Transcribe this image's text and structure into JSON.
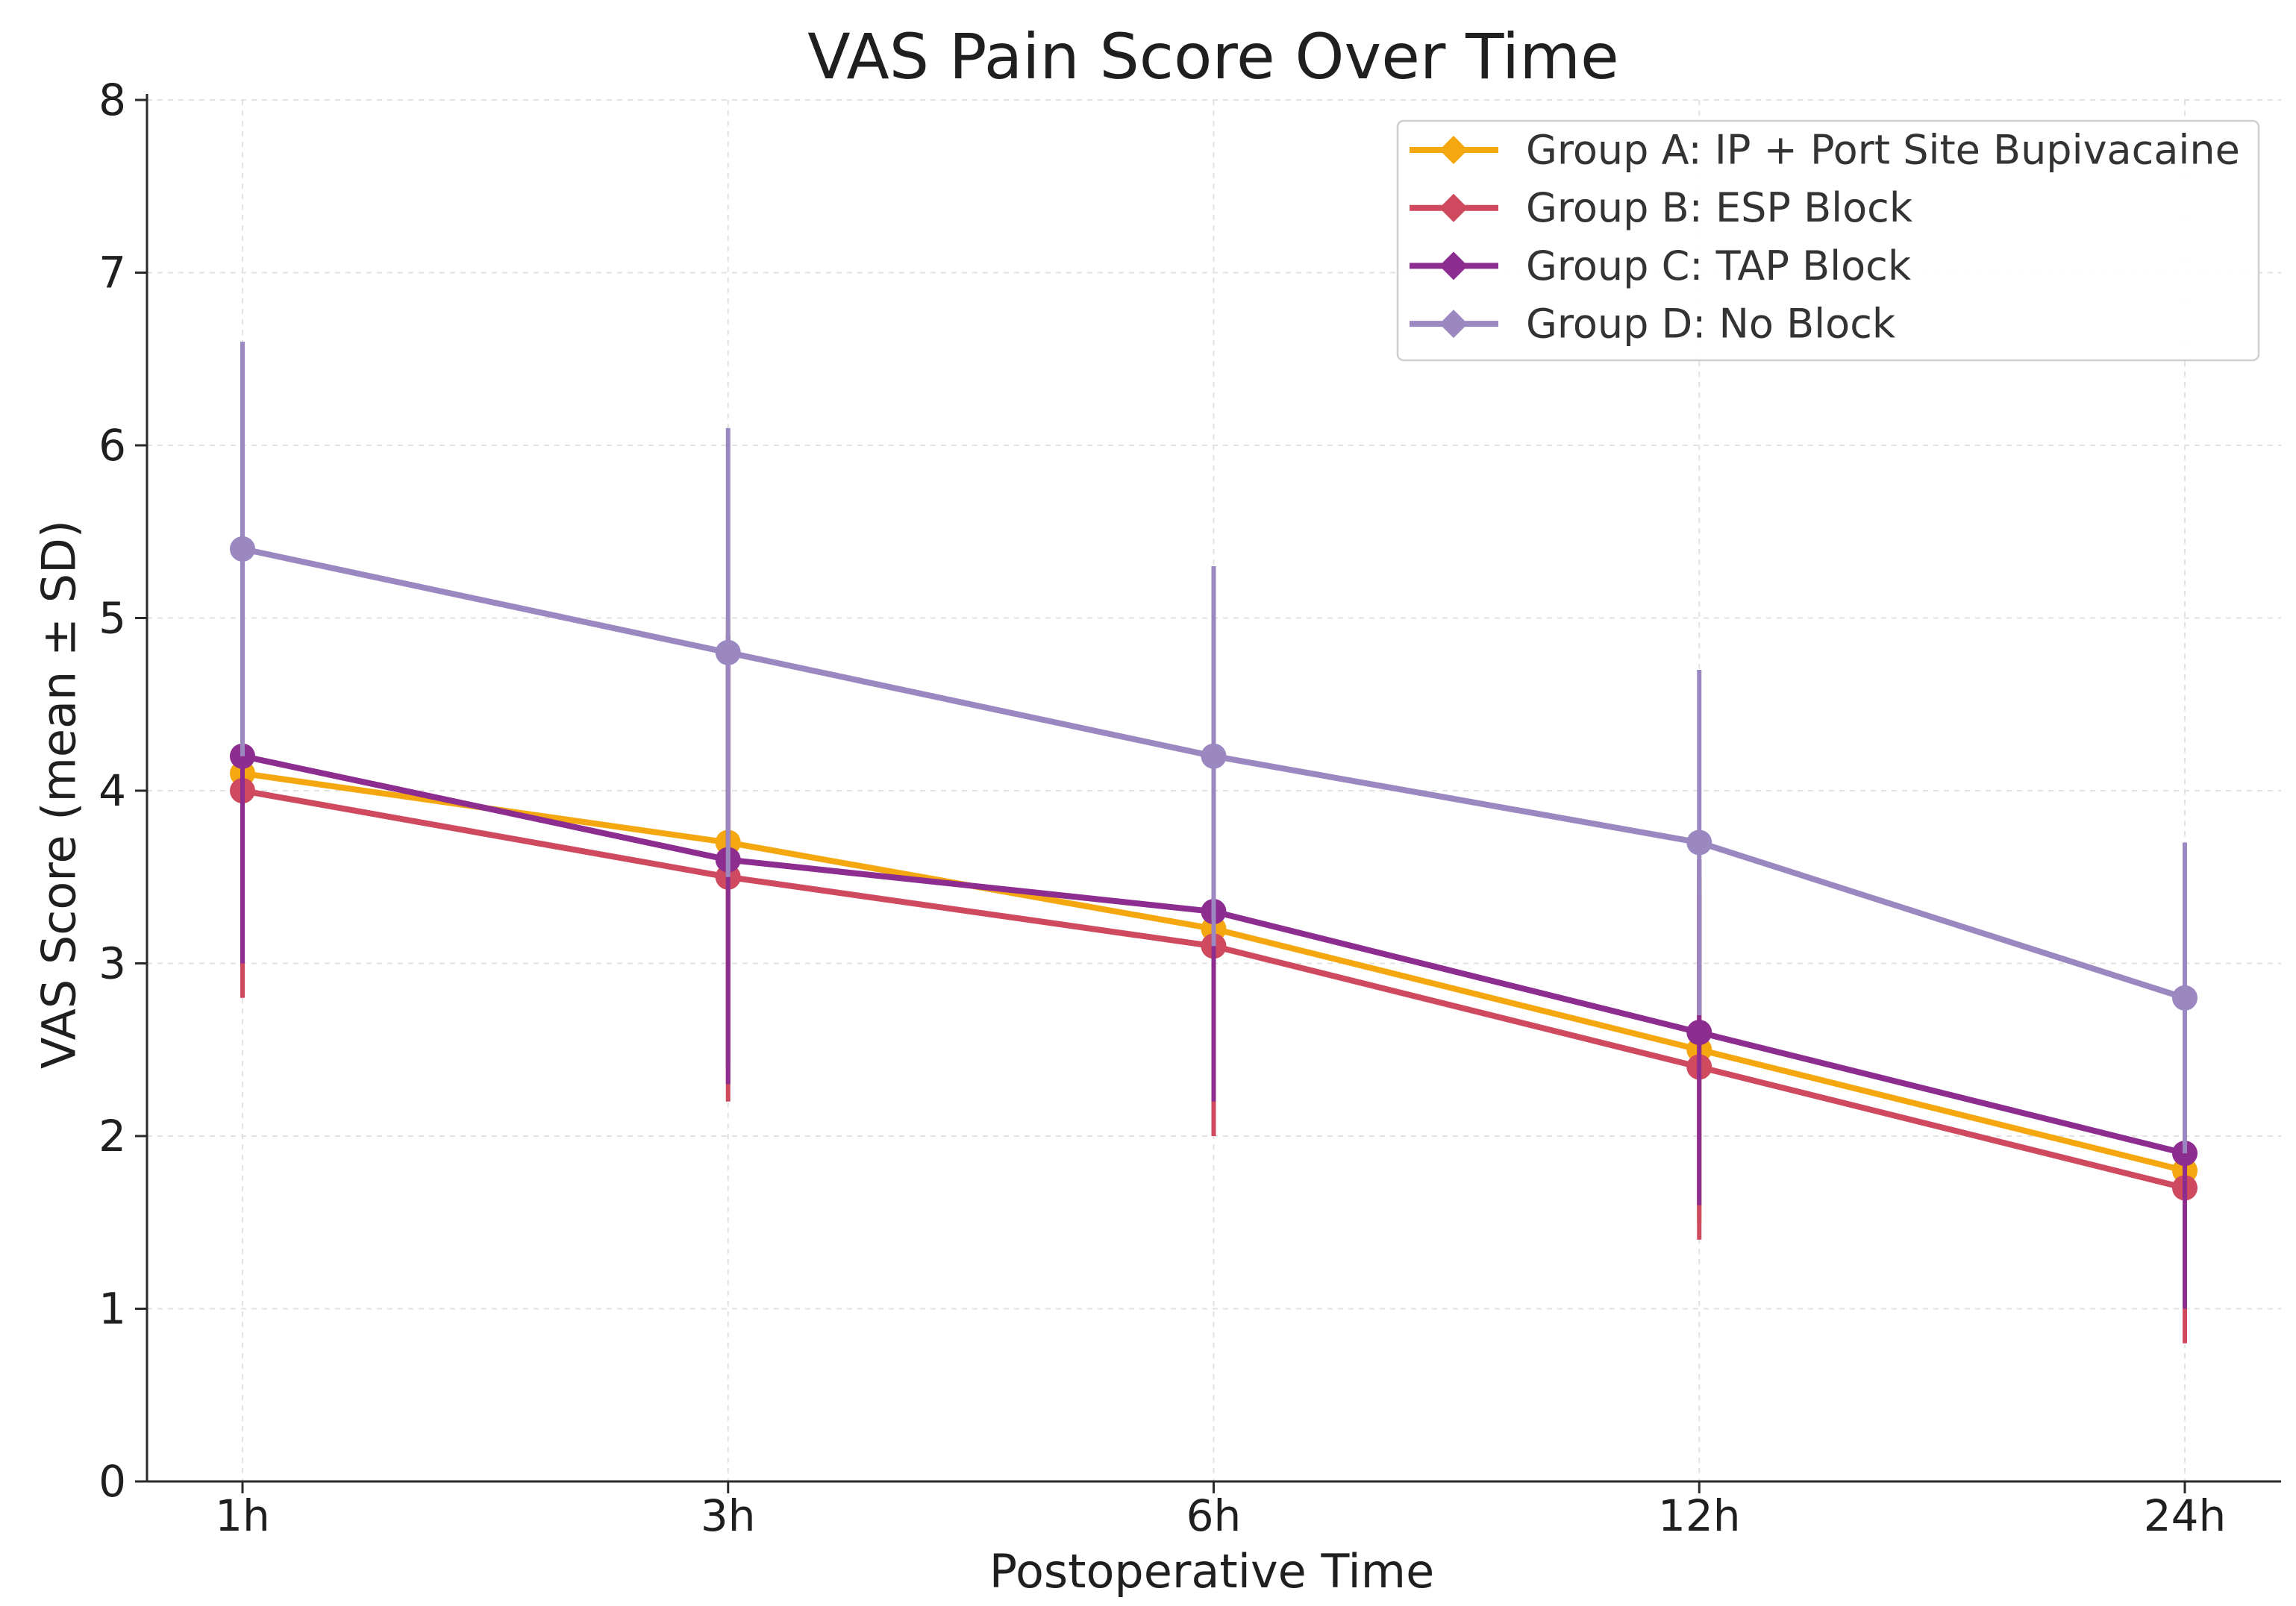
{
  "chart_data": {
    "type": "line",
    "title": "VAS Pain Score Over Time",
    "xlabel": "Postoperative Time",
    "ylabel": "VAS Score (mean ± SD)",
    "categories": [
      "1h",
      "3h",
      "6h",
      "12h",
      "24h"
    ],
    "ylim": [
      0,
      8
    ],
    "yticks": [
      0,
      1,
      2,
      3,
      4,
      5,
      6,
      7,
      8
    ],
    "grid": true,
    "legend": "upper-right",
    "series": [
      {
        "name": "Group A: IP + Port Site Bupivacaine",
        "color": "#F5A70F",
        "values": [
          4.1,
          3.7,
          3.2,
          2.5,
          1.8
        ],
        "sd": [
          1.2,
          1.3,
          1.1,
          1.0,
          0.9
        ]
      },
      {
        "name": "Group B: ESP Block",
        "color": "#CF4A5E",
        "values": [
          4.0,
          3.5,
          3.1,
          2.4,
          1.7
        ],
        "sd": [
          1.2,
          1.3,
          1.1,
          1.0,
          0.9
        ]
      },
      {
        "name": "Group C: TAP Block",
        "color": "#8C2D8F",
        "values": [
          4.2,
          3.6,
          3.3,
          2.6,
          1.9
        ],
        "sd": [
          1.2,
          1.3,
          1.1,
          1.0,
          0.9
        ]
      },
      {
        "name": "Group D: No Block",
        "color": "#9B88C1",
        "values": [
          5.4,
          4.8,
          4.2,
          3.7,
          2.8
        ],
        "sd": [
          1.2,
          1.3,
          1.1,
          1.0,
          0.9
        ]
      }
    ]
  }
}
